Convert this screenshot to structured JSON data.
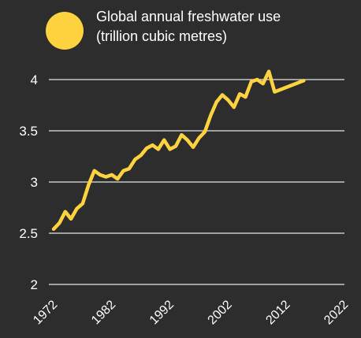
{
  "chart_data": {
    "type": "line",
    "legend": {
      "line1": "Global annual freshwater use",
      "line2": "(trillion cubic metres)"
    },
    "series": [
      {
        "name": "Global annual freshwater use (trillion cubic metres)",
        "color": "#ffd23f",
        "x": [
          1972,
          1973,
          1974,
          1975,
          1976,
          1977,
          1978,
          1979,
          1980,
          1981,
          1982,
          1983,
          1984,
          1985,
          1986,
          1987,
          1988,
          1989,
          1990,
          1991,
          1992,
          1993,
          1994,
          1995,
          1996,
          1997,
          1998,
          1999,
          2000,
          2001,
          2002,
          2003,
          2004,
          2005,
          2006,
          2007,
          2008,
          2009,
          2010,
          2015
        ],
        "y": [
          2.54,
          2.6,
          2.71,
          2.64,
          2.74,
          2.79,
          2.97,
          3.11,
          3.07,
          3.05,
          3.07,
          3.03,
          3.11,
          3.13,
          3.22,
          3.26,
          3.33,
          3.36,
          3.32,
          3.41,
          3.32,
          3.35,
          3.46,
          3.41,
          3.34,
          3.43,
          3.49,
          3.65,
          3.78,
          3.85,
          3.8,
          3.73,
          3.86,
          3.83,
          3.98,
          4.0,
          3.96,
          4.08,
          3.88,
          3.99
        ]
      }
    ],
    "y_ticks": [
      "2",
      "2.5",
      "3",
      "3.5",
      "4"
    ],
    "x_ticks": [
      "1972",
      "1982",
      "1992",
      "2002",
      "2012",
      "2022"
    ],
    "xlim": [
      1972,
      2022
    ],
    "ylim": [
      2,
      4
    ],
    "grid": true,
    "legend_position": "top"
  }
}
